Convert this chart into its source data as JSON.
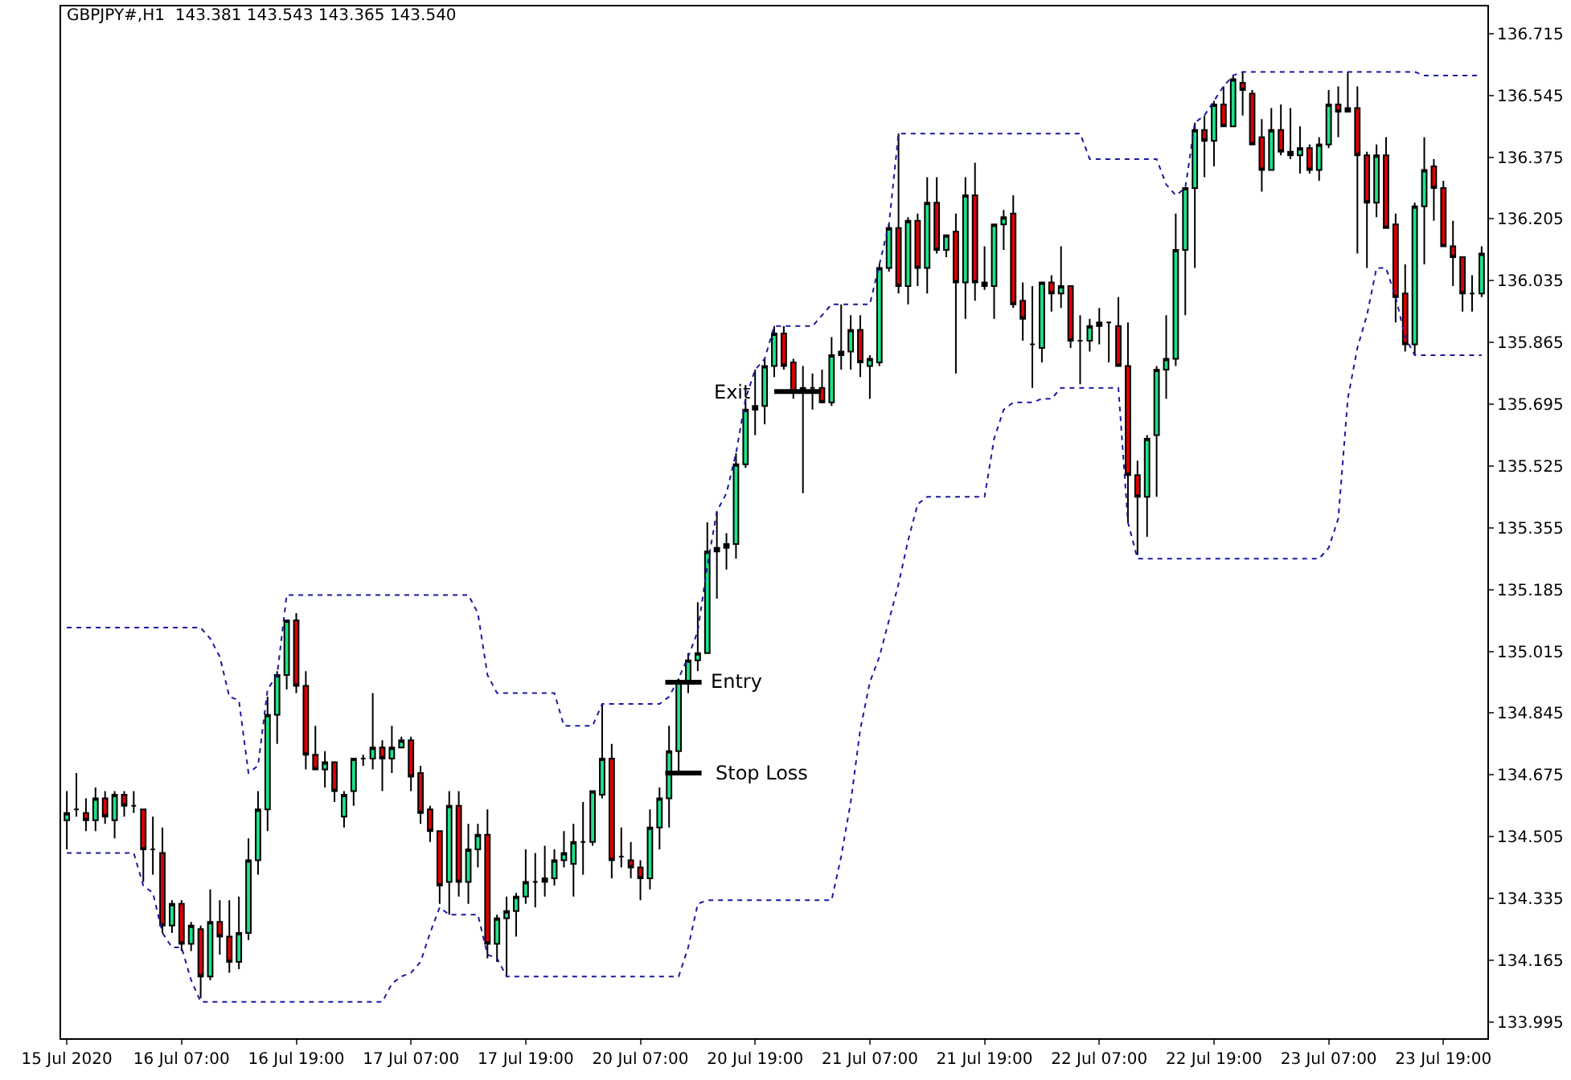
{
  "chart_data": {
    "type": "candlestick",
    "title": "GBPJPY#,H1  143.381 143.543 143.365 143.540",
    "categories": [
      "15 Jul 2020",
      null,
      null,
      null,
      null,
      null,
      null,
      null,
      null,
      null,
      null,
      null,
      "16 Jul 07:00",
      null,
      null,
      null,
      null,
      null,
      null,
      null,
      null,
      null,
      null,
      null,
      "16 Jul 19:00",
      null,
      null,
      null,
      null,
      null,
      null,
      null,
      null,
      null,
      null,
      null,
      "17 Jul 07:00",
      null,
      null,
      null,
      null,
      null,
      null,
      null,
      null,
      null,
      null,
      null,
      "17 Jul 19:00",
      null,
      null,
      null,
      null,
      null,
      null,
      null,
      null,
      null,
      null,
      null,
      "20 Jul 07:00",
      null,
      null,
      null,
      null,
      null,
      null,
      null,
      null,
      null,
      null,
      null,
      "20 Jul 19:00",
      null,
      null,
      null,
      null,
      null,
      null,
      null,
      null,
      null,
      null,
      null,
      "21 Jul 07:00",
      null,
      null,
      null,
      null,
      null,
      null,
      null,
      null,
      null,
      null,
      null,
      "21 Jul 19:00",
      null,
      null,
      null,
      null,
      null,
      null,
      null,
      null,
      null,
      null,
      null,
      "22 Jul 07:00",
      null,
      null,
      null,
      null,
      null,
      null,
      null,
      null,
      null,
      null,
      null,
      "22 Jul 19:00",
      null,
      null,
      null,
      null,
      null,
      null,
      null,
      null,
      null,
      null,
      null,
      "23 Jul 07:00",
      null,
      null,
      null,
      null,
      null,
      null,
      null,
      null,
      null,
      null,
      null,
      "23 Jul 19:00",
      null,
      null,
      null,
      null
    ],
    "ohlc": [
      [
        134.55,
        134.63,
        134.47,
        134.57
      ],
      [
        134.58,
        134.68,
        134.56,
        134.58
      ],
      [
        134.57,
        134.61,
        134.52,
        134.55
      ],
      [
        134.55,
        134.64,
        134.52,
        134.61
      ],
      [
        134.61,
        134.63,
        134.54,
        134.56
      ],
      [
        134.55,
        134.63,
        134.5,
        134.62
      ],
      [
        134.62,
        134.63,
        134.56,
        134.59
      ],
      [
        134.59,
        134.63,
        134.57,
        134.59
      ],
      [
        134.58,
        134.58,
        134.38,
        134.47
      ],
      [
        134.47,
        134.56,
        134.4,
        134.47
      ],
      [
        134.46,
        134.53,
        134.24,
        134.26
      ],
      [
        134.26,
        134.33,
        134.24,
        134.32
      ],
      [
        134.32,
        134.33,
        134.19,
        134.21
      ],
      [
        134.21,
        134.27,
        134.19,
        134.26
      ],
      [
        134.25,
        134.26,
        134.06,
        134.12
      ],
      [
        134.12,
        134.36,
        134.11,
        134.27
      ],
      [
        134.27,
        134.33,
        134.18,
        134.23
      ],
      [
        134.23,
        134.33,
        134.13,
        134.16
      ],
      [
        134.16,
        134.34,
        134.14,
        134.24
      ],
      [
        134.24,
        134.5,
        134.22,
        134.44
      ],
      [
        134.44,
        134.63,
        134.4,
        134.58
      ],
      [
        134.58,
        134.89,
        134.52,
        134.84
      ],
      [
        134.84,
        134.96,
        134.76,
        134.95
      ],
      [
        134.95,
        135.1,
        134.91,
        135.1
      ],
      [
        135.1,
        135.12,
        134.9,
        134.92
      ],
      [
        134.92,
        134.96,
        134.69,
        134.73
      ],
      [
        134.73,
        134.81,
        134.69,
        134.69
      ],
      [
        134.69,
        134.74,
        134.64,
        134.71
      ],
      [
        134.71,
        134.71,
        134.6,
        134.63
      ],
      [
        134.56,
        134.63,
        134.53,
        134.62
      ],
      [
        134.63,
        134.72,
        134.59,
        134.72
      ],
      [
        134.72,
        134.73,
        134.7,
        134.72
      ],
      [
        134.72,
        134.9,
        134.69,
        134.75
      ],
      [
        134.75,
        134.77,
        134.63,
        134.72
      ],
      [
        134.72,
        134.81,
        134.68,
        134.75
      ],
      [
        134.75,
        134.78,
        134.75,
        134.77
      ],
      [
        134.77,
        134.78,
        134.63,
        134.67
      ],
      [
        134.68,
        134.7,
        134.54,
        134.57
      ],
      [
        134.58,
        134.59,
        134.49,
        134.52
      ],
      [
        134.52,
        134.52,
        134.32,
        134.37
      ],
      [
        134.38,
        134.63,
        134.29,
        134.59
      ],
      [
        134.59,
        134.63,
        134.34,
        134.38
      ],
      [
        134.38,
        134.54,
        134.32,
        134.47
      ],
      [
        134.47,
        134.54,
        134.42,
        134.51
      ],
      [
        134.51,
        134.58,
        134.17,
        134.21
      ],
      [
        134.21,
        134.29,
        134.16,
        134.28
      ],
      [
        134.28,
        134.34,
        134.12,
        134.3
      ],
      [
        134.3,
        134.35,
        134.23,
        134.34
      ],
      [
        134.34,
        134.47,
        134.32,
        134.38
      ],
      [
        134.38,
        134.46,
        134.31,
        134.38
      ],
      [
        134.38,
        134.48,
        134.34,
        134.39
      ],
      [
        134.39,
        134.47,
        134.37,
        134.44
      ],
      [
        134.44,
        134.52,
        134.42,
        134.46
      ],
      [
        134.43,
        134.54,
        134.34,
        134.49
      ],
      [
        134.49,
        134.6,
        134.4,
        134.49
      ],
      [
        134.49,
        134.63,
        134.48,
        134.63
      ],
      [
        134.62,
        134.87,
        134.61,
        134.72
      ],
      [
        134.72,
        134.76,
        134.39,
        134.44
      ],
      [
        134.45,
        134.53,
        134.42,
        134.45
      ],
      [
        134.44,
        134.49,
        134.39,
        134.42
      ],
      [
        134.42,
        134.44,
        134.33,
        134.39
      ],
      [
        134.39,
        134.58,
        134.36,
        134.53
      ],
      [
        134.53,
        134.64,
        134.47,
        134.61
      ],
      [
        134.61,
        134.81,
        134.53,
        134.74
      ],
      [
        134.74,
        134.94,
        134.68,
        134.93
      ],
      [
        134.93,
        135.01,
        134.9,
        134.99
      ],
      [
        134.99,
        135.15,
        134.96,
        135.01
      ],
      [
        135.01,
        135.37,
        135.01,
        135.29
      ],
      [
        135.29,
        135.4,
        135.16,
        135.3
      ],
      [
        135.3,
        135.34,
        135.24,
        135.31
      ],
      [
        135.31,
        135.56,
        135.27,
        135.53
      ],
      [
        135.53,
        135.71,
        135.52,
        135.68
      ],
      [
        135.68,
        135.79,
        135.61,
        135.69
      ],
      [
        135.69,
        135.82,
        135.64,
        135.8
      ],
      [
        135.8,
        135.91,
        135.77,
        135.89
      ],
      [
        135.89,
        135.91,
        135.79,
        135.8
      ],
      [
        135.81,
        135.82,
        135.71,
        135.73
      ],
      [
        135.73,
        135.8,
        135.45,
        135.74
      ],
      [
        135.74,
        135.78,
        135.68,
        135.74
      ],
      [
        135.74,
        135.79,
        135.7,
        135.7
      ],
      [
        135.7,
        135.88,
        135.69,
        135.83
      ],
      [
        135.83,
        135.97,
        135.79,
        135.84
      ],
      [
        135.84,
        135.94,
        135.79,
        135.9
      ],
      [
        135.9,
        135.94,
        135.77,
        135.81
      ],
      [
        135.8,
        135.83,
        135.71,
        135.82
      ],
      [
        135.81,
        136.08,
        135.8,
        136.07
      ],
      [
        136.07,
        136.19,
        136.06,
        136.18
      ],
      [
        136.18,
        136.44,
        136.0,
        136.02
      ],
      [
        136.02,
        136.21,
        135.97,
        136.2
      ],
      [
        136.2,
        136.22,
        136.02,
        136.07
      ],
      [
        136.07,
        136.32,
        136.0,
        136.25
      ],
      [
        136.25,
        136.32,
        136.11,
        136.12
      ],
      [
        136.12,
        136.16,
        136.1,
        136.16
      ],
      [
        136.17,
        136.22,
        135.78,
        136.03
      ],
      [
        136.03,
        136.32,
        135.93,
        136.27
      ],
      [
        136.27,
        136.36,
        135.98,
        136.03
      ],
      [
        136.03,
        136.13,
        136.01,
        136.02
      ],
      [
        136.02,
        136.19,
        135.93,
        136.19
      ],
      [
        136.19,
        136.23,
        136.12,
        136.21
      ],
      [
        136.22,
        136.27,
        135.96,
        135.97
      ],
      [
        135.98,
        136.03,
        135.87,
        135.93
      ],
      [
        135.86,
        136.02,
        135.74,
        135.86
      ],
      [
        135.85,
        136.03,
        135.81,
        136.03
      ],
      [
        136.03,
        136.05,
        135.95,
        136.0
      ],
      [
        136.0,
        136.13,
        135.96,
        136.02
      ],
      [
        136.02,
        136.02,
        135.85,
        135.87
      ],
      [
        135.87,
        135.94,
        135.75,
        135.87
      ],
      [
        135.87,
        135.93,
        135.84,
        135.91
      ],
      [
        135.91,
        135.96,
        135.86,
        135.92
      ],
      [
        135.92,
        135.92,
        135.81,
        135.92
      ],
      [
        135.91,
        135.99,
        135.8,
        135.8
      ],
      [
        135.8,
        135.92,
        135.37,
        135.5
      ],
      [
        135.5,
        135.54,
        135.28,
        135.44
      ],
      [
        135.44,
        135.61,
        135.33,
        135.6
      ],
      [
        135.61,
        135.8,
        135.44,
        135.79
      ],
      [
        135.79,
        135.94,
        135.71,
        135.82
      ],
      [
        135.82,
        136.22,
        135.8,
        136.12
      ],
      [
        136.12,
        136.29,
        135.94,
        136.29
      ],
      [
        136.29,
        136.47,
        136.07,
        136.45
      ],
      [
        136.45,
        136.49,
        136.32,
        136.42
      ],
      [
        136.42,
        136.53,
        136.35,
        136.52
      ],
      [
        136.52,
        136.57,
        136.46,
        136.46
      ],
      [
        136.46,
        136.6,
        136.46,
        136.59
      ],
      [
        136.58,
        136.61,
        136.49,
        136.56
      ],
      [
        136.55,
        136.56,
        136.41,
        136.41
      ],
      [
        136.43,
        136.48,
        136.28,
        136.34
      ],
      [
        136.34,
        136.51,
        136.34,
        136.45
      ],
      [
        136.45,
        136.52,
        136.38,
        136.39
      ],
      [
        136.39,
        136.51,
        136.37,
        136.38
      ],
      [
        136.38,
        136.46,
        136.33,
        136.4
      ],
      [
        136.4,
        136.41,
        136.33,
        136.34
      ],
      [
        136.34,
        136.43,
        136.31,
        136.41
      ],
      [
        136.41,
        136.56,
        136.4,
        136.52
      ],
      [
        136.52,
        136.57,
        136.43,
        136.5
      ],
      [
        136.5,
        136.61,
        136.5,
        136.51
      ],
      [
        136.51,
        136.57,
        136.11,
        136.38
      ],
      [
        136.38,
        136.39,
        136.07,
        136.25
      ],
      [
        136.25,
        136.41,
        136.21,
        136.38
      ],
      [
        136.38,
        136.43,
        136.18,
        136.18
      ],
      [
        136.19,
        136.22,
        135.92,
        135.99
      ],
      [
        136.0,
        136.08,
        135.84,
        135.86
      ],
      [
        135.86,
        136.25,
        135.83,
        136.24
      ],
      [
        136.24,
        136.43,
        136.08,
        136.34
      ],
      [
        136.35,
        136.37,
        136.2,
        136.29
      ],
      [
        136.29,
        136.31,
        136.13,
        136.13
      ],
      [
        136.13,
        136.2,
        136.02,
        136.1
      ],
      [
        136.1,
        136.1,
        135.95,
        136.0
      ],
      [
        136.0,
        136.05,
        135.95,
        136.0
      ],
      [
        136.0,
        136.13,
        135.99,
        136.11
      ]
    ],
    "colors": [
      "#1de28a",
      "#000000",
      "#e00000",
      "#1de28a",
      "#e00000",
      "#1de28a",
      "#e00000",
      "#000000",
      "#e00000",
      "#000000",
      "#e00000",
      "#1de28a",
      "#e00000",
      "#1de28a",
      "#e00000",
      "#1de28a",
      "#e00000",
      "#e00000",
      "#1de28a",
      "#1de28a",
      "#1de28a",
      "#1de28a",
      "#1de28a",
      "#1de28a",
      "#e00000",
      "#e00000",
      "#e00000",
      "#1de28a",
      "#e00000",
      "#1de28a",
      "#1de28a",
      "#000000",
      "#1de28a",
      "#e00000",
      "#1de28a",
      "#1de28a",
      "#e00000",
      "#e00000",
      "#e00000",
      "#e00000",
      "#1de28a",
      "#e00000",
      "#1de28a",
      "#1de28a",
      "#e00000",
      "#1de28a",
      "#1de28a",
      "#1de28a",
      "#1de28a",
      "#000000",
      "#000000",
      "#1de28a",
      "#1de28a",
      "#1de28a",
      "#000000",
      "#1de28a",
      "#1de28a",
      "#e00000",
      "#000000",
      "#e00000",
      "#e00000",
      "#1de28a",
      "#1de28a",
      "#1de28a",
      "#1de28a",
      "#1de28a",
      "#1de28a",
      "#1de28a",
      "#000000",
      "#000000",
      "#1de28a",
      "#1de28a",
      "#000000",
      "#1de28a",
      "#1de28a",
      "#e00000",
      "#e00000",
      "#000000",
      "#000000",
      "#e00000",
      "#1de28a",
      "#000000",
      "#1de28a",
      "#e00000",
      "#1de28a",
      "#1de28a",
      "#1de28a",
      "#e00000",
      "#1de28a",
      "#e00000",
      "#1de28a",
      "#e00000",
      "#1de28a",
      "#e00000",
      "#1de28a",
      "#e00000",
      "#000000",
      "#1de28a",
      "#1de28a",
      "#e00000",
      "#e00000",
      "#000000",
      "#1de28a",
      "#e00000",
      "#1de28a",
      "#e00000",
      "#000000",
      "#1de28a",
      "#000000",
      "#000000",
      "#e00000",
      "#e00000",
      "#e00000",
      "#1de28a",
      "#1de28a",
      "#1de28a",
      "#1de28a",
      "#1de28a",
      "#1de28a",
      "#e00000",
      "#1de28a",
      "#e00000",
      "#1de28a",
      "#e00000",
      "#e00000",
      "#e00000",
      "#1de28a",
      "#e00000",
      "#000000",
      "#1de28a",
      "#e00000",
      "#1de28a",
      "#1de28a",
      "#e00000",
      "#000000",
      "#e00000",
      "#e00000",
      "#1de28a",
      "#e00000",
      "#e00000",
      "#e00000",
      "#1de28a",
      "#1de28a",
      "#e00000",
      "#e00000",
      "#e00000",
      "#e00000",
      "#000000",
      "#1de28a"
    ],
    "series": [
      {
        "type": "line",
        "color": "#1a1aa0",
        "line_style": "dotted",
        "values": [
          135.08,
          135.08,
          135.08,
          135.08,
          135.08,
          135.08,
          135.08,
          135.08,
          135.08,
          135.08,
          135.08,
          135.08,
          135.08,
          135.08,
          135.08,
          135.05,
          135.0,
          134.89,
          134.88,
          134.68,
          134.7,
          134.91,
          134.95,
          135.17,
          135.17,
          135.17,
          135.17,
          135.17,
          135.17,
          135.17,
          135.17,
          135.17,
          135.17,
          135.17,
          135.17,
          135.17,
          135.17,
          135.17,
          135.17,
          135.17,
          135.17,
          135.17,
          135.17,
          135.12,
          134.95,
          134.9,
          134.9,
          134.9,
          134.9,
          134.9,
          134.9,
          134.9,
          134.81,
          134.81,
          134.81,
          134.81,
          134.87,
          134.87,
          134.87,
          134.87,
          134.87,
          134.87,
          134.87,
          134.89,
          134.94,
          135.0,
          135.07,
          135.25,
          135.4,
          135.45,
          135.56,
          135.71,
          135.79,
          135.82,
          135.91,
          135.91,
          135.91,
          135.91,
          135.91,
          135.94,
          135.97,
          135.97,
          135.97,
          135.97,
          135.97,
          136.08,
          136.19,
          136.44,
          136.44,
          136.44,
          136.44,
          136.44,
          136.44,
          136.44,
          136.44,
          136.44,
          136.44,
          136.44,
          136.44,
          136.44,
          136.44,
          136.44,
          136.44,
          136.44,
          136.44,
          136.44,
          136.44,
          136.37,
          136.37,
          136.37,
          136.37,
          136.37,
          136.37,
          136.37,
          136.37,
          136.3,
          136.27,
          136.29,
          136.47,
          136.49,
          136.53,
          136.57,
          136.6,
          136.61,
          136.61,
          136.61,
          136.61,
          136.61,
          136.61,
          136.61,
          136.61,
          136.61,
          136.61,
          136.61,
          136.61,
          136.61,
          136.61,
          136.61,
          136.61,
          136.61,
          136.61,
          136.61,
          136.6,
          136.6,
          136.6,
          136.6,
          136.6,
          136.6,
          136.6
        ]
      },
      {
        "type": "line",
        "color": "#1a1aa0",
        "line_style": "dotted",
        "values": [
          134.46,
          134.46,
          134.46,
          134.46,
          134.46,
          134.46,
          134.46,
          134.46,
          134.37,
          134.35,
          134.24,
          134.2,
          134.2,
          134.11,
          134.05,
          134.05,
          134.05,
          134.05,
          134.05,
          134.05,
          134.05,
          134.05,
          134.05,
          134.05,
          134.05,
          134.05,
          134.05,
          134.05,
          134.05,
          134.05,
          134.05,
          134.05,
          134.05,
          134.05,
          134.1,
          134.12,
          134.13,
          134.16,
          134.24,
          134.31,
          134.29,
          134.29,
          134.29,
          134.29,
          134.18,
          134.17,
          134.12,
          134.12,
          134.12,
          134.12,
          134.12,
          134.12,
          134.12,
          134.12,
          134.12,
          134.12,
          134.12,
          134.12,
          134.12,
          134.12,
          134.12,
          134.12,
          134.12,
          134.12,
          134.12,
          134.2,
          134.32,
          134.33,
          134.33,
          134.33,
          134.33,
          134.33,
          134.33,
          134.33,
          134.33,
          134.33,
          134.33,
          134.33,
          134.33,
          134.33,
          134.33,
          134.45,
          134.6,
          134.8,
          134.93,
          135.0,
          135.1,
          135.2,
          135.32,
          135.42,
          135.44,
          135.44,
          135.44,
          135.44,
          135.44,
          135.44,
          135.44,
          135.6,
          135.68,
          135.7,
          135.7,
          135.7,
          135.71,
          135.71,
          135.74,
          135.74,
          135.74,
          135.74,
          135.74,
          135.74,
          135.74,
          135.37,
          135.27,
          135.27,
          135.27,
          135.27,
          135.27,
          135.27,
          135.27,
          135.27,
          135.27,
          135.27,
          135.27,
          135.27,
          135.27,
          135.27,
          135.27,
          135.27,
          135.27,
          135.27,
          135.27,
          135.27,
          135.3,
          135.38,
          135.71,
          135.85,
          135.94,
          136.07,
          136.07,
          135.99,
          135.88,
          135.83,
          135.83,
          135.83,
          135.83,
          135.83,
          135.83,
          135.83,
          135.83
        ]
      }
    ],
    "ylim": [
      133.95,
      136.79
    ],
    "yticks": [
      133.995,
      134.165,
      134.335,
      134.505,
      134.675,
      134.845,
      135.015,
      135.185,
      135.355,
      135.525,
      135.695,
      135.865,
      136.035,
      136.205,
      136.375,
      136.545,
      136.715
    ],
    "ref_lines": [
      {
        "axis": "y",
        "value": 134.93,
        "label": "Entry",
        "color": "#000000"
      },
      {
        "axis": "y",
        "value": 134.68,
        "label": "Stop Loss",
        "color": "#000000"
      },
      {
        "axis": "y",
        "value": 135.73,
        "label": "Exit",
        "color": "#000000"
      }
    ]
  }
}
